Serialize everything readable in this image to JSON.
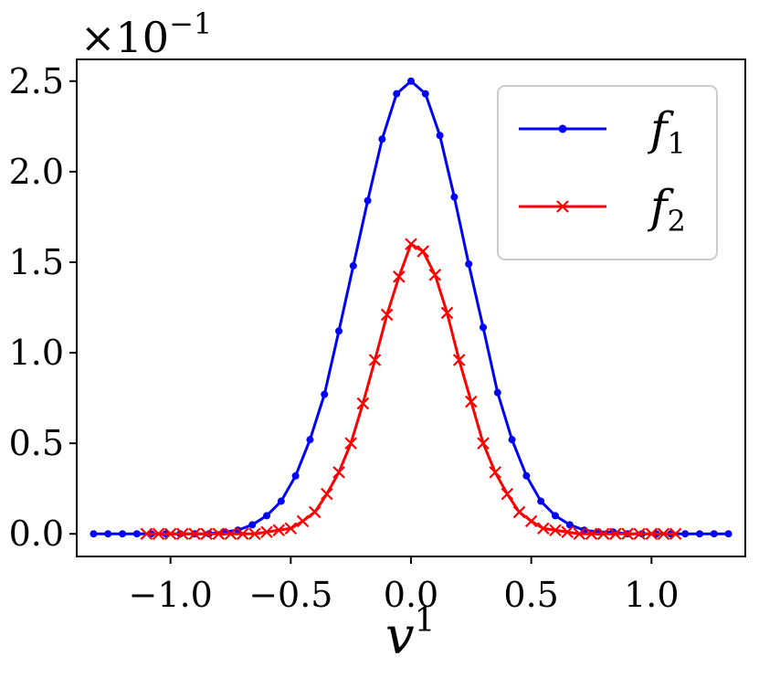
{
  "chart_data": {
    "type": "line",
    "title": "",
    "xlabel": "v",
    "xlabel_superscript": "1",
    "ylabel": "",
    "y_scale_label": "×10",
    "y_scale_exponent": "−1",
    "xlim": [
      -1.39,
      1.39
    ],
    "ylim": [
      -0.125,
      2.62
    ],
    "x_ticks": [
      -1.0,
      -0.5,
      0.0,
      0.5,
      1.0
    ],
    "x_tick_labels": [
      "−1.0",
      "−0.5",
      "0.0",
      "0.5",
      "1.0"
    ],
    "y_ticks": [
      0.0,
      0.5,
      1.0,
      1.5,
      2.0,
      2.5
    ],
    "y_tick_labels": [
      "0.0",
      "0.5",
      "1.0",
      "1.5",
      "2.0",
      "2.5"
    ],
    "grid": false,
    "legend": "top-right",
    "series": [
      {
        "name": "f",
        "subscript": "1",
        "color": "#0000ff",
        "marker": "dot",
        "x": [
          -1.32,
          -1.26,
          -1.2,
          -1.14,
          -1.08,
          -1.02,
          -0.96,
          -0.9,
          -0.84,
          -0.78,
          -0.72,
          -0.66,
          -0.6,
          -0.54,
          -0.48,
          -0.42,
          -0.36,
          -0.3,
          -0.24,
          -0.18,
          -0.12,
          -0.06,
          0.0,
          0.06,
          0.12,
          0.18,
          0.24,
          0.3,
          0.36,
          0.42,
          0.48,
          0.54,
          0.6,
          0.66,
          0.72,
          0.78,
          0.84,
          0.9,
          0.96,
          1.02,
          1.08,
          1.14,
          1.2,
          1.26,
          1.32
        ],
        "values": [
          0.0,
          0.0,
          0.0,
          0.0,
          0.0,
          0.0,
          0.0,
          0.0,
          0.0,
          0.01,
          0.02,
          0.05,
          0.1,
          0.18,
          0.32,
          0.52,
          0.77,
          1.12,
          1.48,
          1.84,
          2.18,
          2.43,
          2.5,
          2.43,
          2.2,
          1.86,
          1.49,
          1.14,
          0.78,
          0.52,
          0.32,
          0.18,
          0.1,
          0.05,
          0.02,
          0.01,
          0.01,
          0.0,
          0.0,
          0.0,
          0.0,
          0.0,
          0.0,
          0.0,
          0.0
        ]
      },
      {
        "name": "f",
        "subscript": "2",
        "color": "#ff0000",
        "marker": "x",
        "x": [
          -1.1,
          -1.05,
          -1.0,
          -0.95,
          -0.9,
          -0.85,
          -0.8,
          -0.75,
          -0.7,
          -0.65,
          -0.6,
          -0.55,
          -0.5,
          -0.45,
          -0.4,
          -0.35,
          -0.3,
          -0.25,
          -0.2,
          -0.15,
          -0.1,
          -0.05,
          0.0,
          0.05,
          0.1,
          0.15,
          0.2,
          0.25,
          0.3,
          0.35,
          0.4,
          0.45,
          0.5,
          0.55,
          0.6,
          0.65,
          0.7,
          0.75,
          0.8,
          0.85,
          0.9,
          0.95,
          1.0,
          1.05,
          1.1
        ],
        "values": [
          0.0,
          0.0,
          0.0,
          0.0,
          0.0,
          0.0,
          0.0,
          0.0,
          0.0,
          0.0,
          0.01,
          0.02,
          0.03,
          0.07,
          0.12,
          0.22,
          0.34,
          0.5,
          0.72,
          0.96,
          1.21,
          1.42,
          1.6,
          1.56,
          1.43,
          1.22,
          0.96,
          0.73,
          0.5,
          0.34,
          0.22,
          0.12,
          0.07,
          0.03,
          0.02,
          0.01,
          0.0,
          0.0,
          0.0,
          0.0,
          0.0,
          0.0,
          0.0,
          0.0,
          0.0
        ]
      }
    ]
  }
}
